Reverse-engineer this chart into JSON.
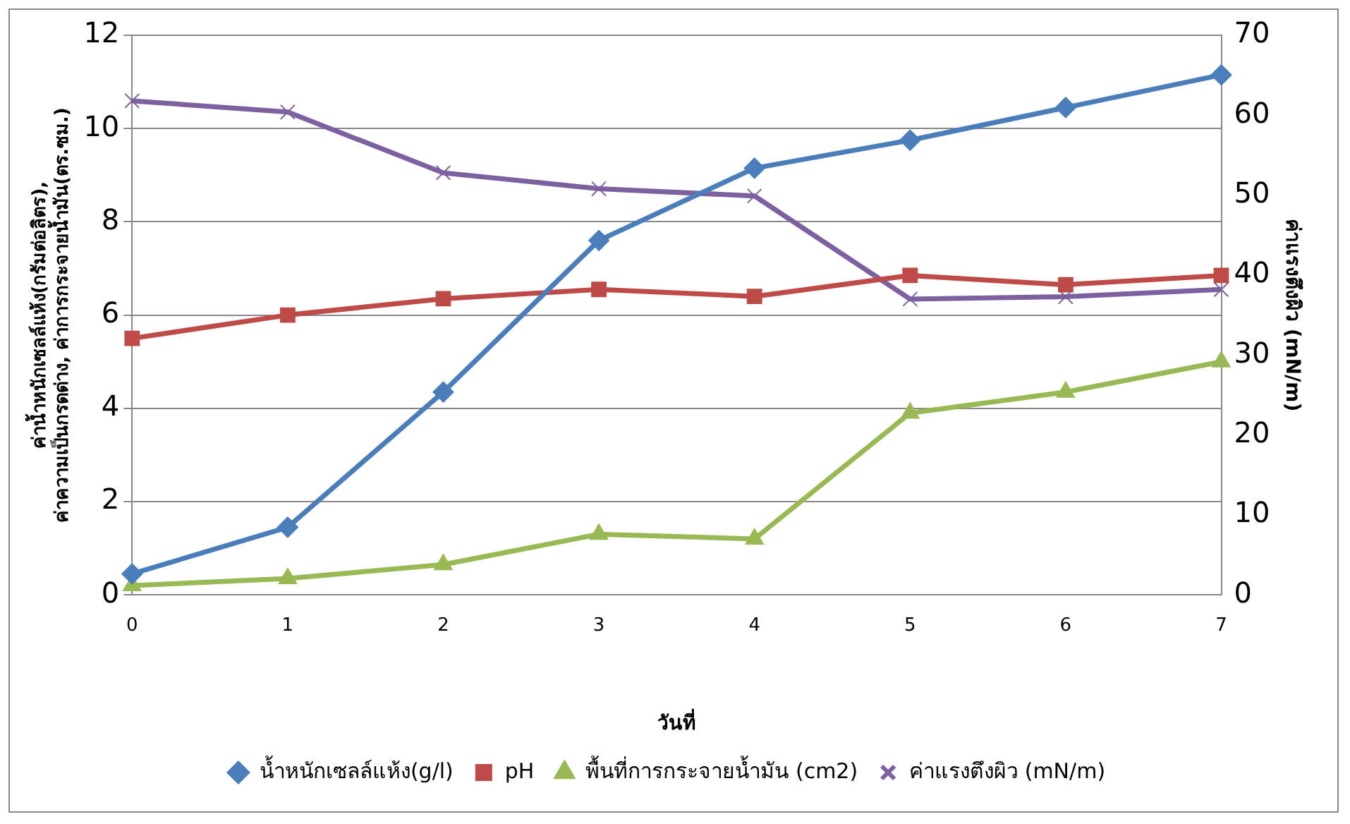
{
  "chart_data": {
    "type": "line",
    "xlabel": "วันที่",
    "ylabel": "ค่าน้ำหนักเซลล์แห้ง(กรัมต่อลิตร), ค่าความเป็นกรดด่าง, ค่าการกระจายน้ำมัน(ตร.ซม.)",
    "y2label": "ค่าแรงตึงผิว (mN/m)",
    "categories": [
      "0",
      "1",
      "2",
      "3",
      "4",
      "5",
      "6",
      "7"
    ],
    "series": [
      {
        "name": "น้ำหนักเซลล์แห้ง(g/l)",
        "color": "#4a7ebb",
        "marker": "diamond",
        "values": [
          0.45,
          1.45,
          4.35,
          7.6,
          9.15,
          9.75,
          10.45,
          11.15
        ]
      },
      {
        "name": "pH",
        "color": "#be4b48",
        "marker": "square",
        "values": [
          5.5,
          6.0,
          6.35,
          6.55,
          6.4,
          6.85,
          6.65,
          6.85
        ]
      },
      {
        "name": "พื้นที่การกระจายน้ำมัน (cm2)",
        "color": "#98b954",
        "marker": "triangle",
        "values": [
          0.2,
          0.35,
          0.65,
          1.3,
          1.2,
          3.9,
          4.35,
          5.0
        ]
      },
      {
        "name": "ค่าแรงตึงผิว (mN/m)",
        "color": "#7d60a0",
        "marker": "cross",
        "axis": "y2",
        "values": [
          61.8,
          60.4,
          52.8,
          50.8,
          49.9,
          37,
          37.3,
          38.2
        ]
      }
    ],
    "ylim": [
      0,
      12
    ],
    "yticks": [
      0,
      2,
      4,
      6,
      8,
      10,
      12
    ],
    "y2lim": [
      0,
      70
    ],
    "y2ticks": [
      0,
      10,
      20,
      30,
      40,
      50,
      60,
      70
    ],
    "grid": "y",
    "legend": "bottom"
  }
}
